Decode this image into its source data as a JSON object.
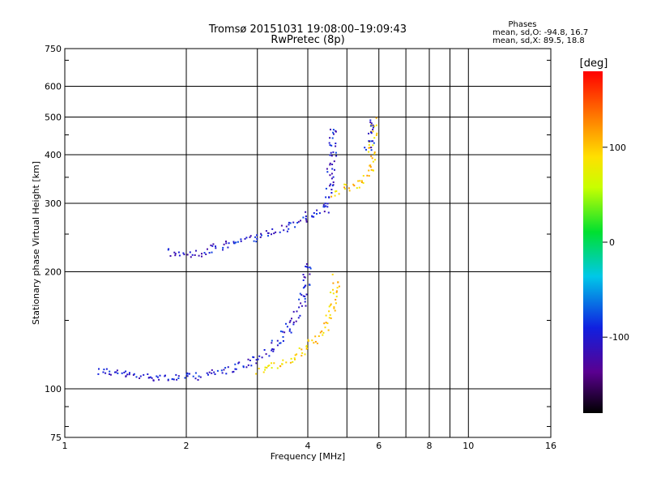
{
  "chart_data": {
    "type": "scatter",
    "title": "Tromsø 20151031 19:08:00–19:09:43",
    "subtitle": "RwPretec (8p)",
    "xlabel": "Frequency [MHz]",
    "ylabel": "Stationary phase Virtual Height [km]",
    "x_scale": "log",
    "y_scale": "log",
    "xlim": [
      1,
      16
    ],
    "ylim": [
      75,
      750
    ],
    "x_ticks": [
      1,
      2,
      4,
      6,
      8,
      10,
      16
    ],
    "x_tick_labels": [
      "1",
      "2",
      "4",
      "6",
      "8",
      "10",
      "16"
    ],
    "x_grid_extra": [
      3,
      5,
      7,
      9
    ],
    "y_ticks": [
      75,
      100,
      200,
      300,
      400,
      500,
      600,
      750
    ],
    "y_tick_labels": [
      "75",
      "100",
      "200",
      "300",
      "400",
      "500",
      "600",
      "750"
    ],
    "grid": true,
    "stats": {
      "heading": "Phases",
      "line1": "mean, sd,O: -94.8, 16.7",
      "line2": "mean, sd,X:  89.5, 18.8"
    },
    "colorbar": {
      "label": "[deg]",
      "range": [
        -180,
        180
      ],
      "ticks": [
        100,
        0,
        -100
      ],
      "tick_labels": [
        "100",
        "0",
        "-100"
      ]
    },
    "series": [
      {
        "name": "",
        "phase_deg": -100,
        "trace": [
          [
            1.2,
            112
          ],
          [
            1.35,
            110
          ],
          [
            1.5,
            108
          ],
          [
            1.7,
            108
          ],
          [
            1.9,
            107
          ],
          [
            2.1,
            108
          ],
          [
            2.3,
            110
          ],
          [
            2.5,
            112
          ],
          [
            2.7,
            115
          ],
          [
            2.9,
            118
          ],
          [
            3.1,
            123
          ],
          [
            3.3,
            130
          ],
          [
            3.5,
            140
          ],
          [
            3.7,
            150
          ],
          [
            3.85,
            165
          ],
          [
            3.95,
            190
          ],
          [
            4.0,
            215
          ]
        ]
      },
      {
        "name": "",
        "phase_deg": 95,
        "trace": [
          [
            3.0,
            112
          ],
          [
            3.2,
            114
          ],
          [
            3.4,
            116
          ],
          [
            3.6,
            119
          ],
          [
            3.8,
            124
          ],
          [
            4.0,
            130
          ],
          [
            4.2,
            137
          ],
          [
            4.4,
            145
          ],
          [
            4.55,
            160
          ],
          [
            4.65,
            180
          ],
          [
            4.7,
            195
          ]
        ]
      },
      {
        "name": "",
        "phase_deg": -100,
        "trace": [
          [
            1.8,
            225
          ],
          [
            2.0,
            222
          ],
          [
            2.2,
            225
          ],
          [
            2.4,
            232
          ],
          [
            2.6,
            238
          ],
          [
            2.9,
            245
          ],
          [
            3.2,
            252
          ],
          [
            3.5,
            262
          ],
          [
            3.8,
            272
          ],
          [
            4.0,
            280
          ],
          [
            4.2,
            282
          ],
          [
            4.4,
            290
          ],
          [
            4.5,
            320
          ],
          [
            4.55,
            370
          ],
          [
            4.6,
            420
          ],
          [
            4.6,
            480
          ]
        ]
      },
      {
        "name": "",
        "phase_deg": 100,
        "trace": [
          [
            4.6,
            320
          ],
          [
            4.8,
            325
          ],
          [
            5.0,
            330
          ],
          [
            5.2,
            332
          ],
          [
            5.4,
            338
          ],
          [
            5.55,
            348
          ],
          [
            5.7,
            370
          ],
          [
            5.75,
            410
          ],
          [
            5.8,
            460
          ],
          [
            5.8,
            500
          ]
        ]
      },
      {
        "name": "",
        "phase_deg": -100,
        "trace": [
          [
            5.6,
            410
          ],
          [
            5.7,
            440
          ],
          [
            5.75,
            470
          ],
          [
            5.8,
            500
          ]
        ]
      }
    ]
  }
}
